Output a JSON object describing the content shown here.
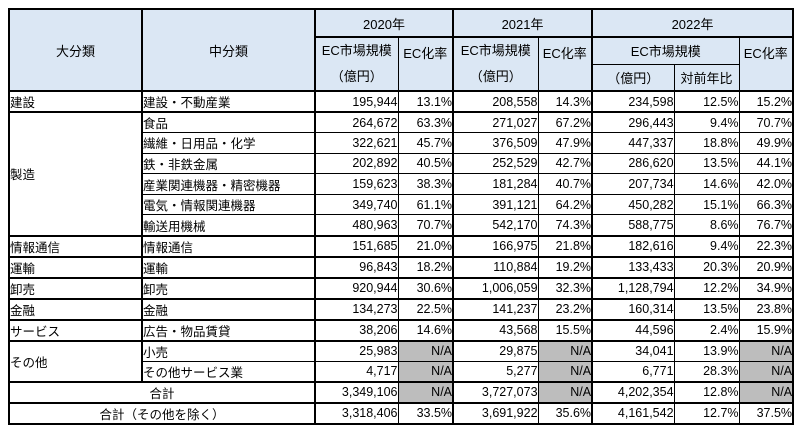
{
  "chart_data": {
    "type": "table",
    "header": {
      "major": "大分類",
      "middle": "中分類",
      "year_2020": "2020年",
      "year_2021": "2021年",
      "year_2022": "2022年",
      "market_size": "EC市場規模",
      "unit": "（億円）",
      "ec_rate": "EC化率",
      "yoy": "対前年比"
    },
    "rows": [
      {
        "major": "建設",
        "middle": "建設・不動産業",
        "m2020": "195,944",
        "r2020": "13.1%",
        "m2021": "208,558",
        "r2021": "14.3%",
        "m2022": "234,598",
        "yoy": "12.5%",
        "r2022": "15.2%"
      },
      {
        "major": "製造",
        "middle": "食品",
        "m2020": "264,672",
        "r2020": "63.3%",
        "m2021": "271,027",
        "r2021": "67.2%",
        "m2022": "296,443",
        "yoy": "9.4%",
        "r2022": "70.7%"
      },
      {
        "middle": "繊維・日用品・化学",
        "m2020": "322,621",
        "r2020": "45.7%",
        "m2021": "376,509",
        "r2021": "47.9%",
        "m2022": "447,337",
        "yoy": "18.8%",
        "r2022": "49.9%"
      },
      {
        "middle": "鉄・非鉄金属",
        "m2020": "202,892",
        "r2020": "40.5%",
        "m2021": "252,529",
        "r2021": "42.7%",
        "m2022": "286,620",
        "yoy": "13.5%",
        "r2022": "44.1%"
      },
      {
        "middle": "産業関連機器・精密機器",
        "m2020": "159,623",
        "r2020": "38.3%",
        "m2021": "181,284",
        "r2021": "40.7%",
        "m2022": "207,734",
        "yoy": "14.6%",
        "r2022": "42.0%"
      },
      {
        "middle": "電気・情報関連機器",
        "m2020": "349,740",
        "r2020": "61.1%",
        "m2021": "391,121",
        "r2021": "64.2%",
        "m2022": "450,282",
        "yoy": "15.1%",
        "r2022": "66.3%"
      },
      {
        "middle": "輸送用機械",
        "m2020": "480,963",
        "r2020": "70.7%",
        "m2021": "542,170",
        "r2021": "74.3%",
        "m2022": "588,775",
        "yoy": "8.6%",
        "r2022": "76.7%"
      },
      {
        "major": "情報通信",
        "middle": "情報通信",
        "m2020": "151,685",
        "r2020": "21.0%",
        "m2021": "166,975",
        "r2021": "21.8%",
        "m2022": "182,616",
        "yoy": "9.4%",
        "r2022": "22.3%"
      },
      {
        "major": "運輸",
        "middle": "運輸",
        "m2020": "96,843",
        "r2020": "18.2%",
        "m2021": "110,884",
        "r2021": "19.2%",
        "m2022": "133,433",
        "yoy": "20.3%",
        "r2022": "20.9%"
      },
      {
        "major": "卸売",
        "middle": "卸売",
        "m2020": "920,944",
        "r2020": "30.6%",
        "m2021": "1,006,059",
        "r2021": "32.3%",
        "m2022": "1,128,794",
        "yoy": "12.2%",
        "r2022": "34.9%"
      },
      {
        "major": "金融",
        "middle": "金融",
        "m2020": "134,273",
        "r2020": "22.5%",
        "m2021": "141,237",
        "r2021": "23.2%",
        "m2022": "160,314",
        "yoy": "13.5%",
        "r2022": "23.8%"
      },
      {
        "major": "サービス",
        "middle": "広告・物品賃貸",
        "m2020": "38,206",
        "r2020": "14.6%",
        "m2021": "43,568",
        "r2021": "15.5%",
        "m2022": "44,596",
        "yoy": "2.4%",
        "r2022": "15.9%"
      },
      {
        "major": "その他",
        "middle": "小売",
        "m2020": "25,983",
        "r2020": "N/A",
        "m2021": "29,875",
        "r2021": "N/A",
        "m2022": "34,041",
        "yoy": "13.9%",
        "r2022": "N/A"
      },
      {
        "middle": "その他サービス業",
        "m2020": "4,717",
        "r2020": "N/A",
        "m2021": "5,277",
        "r2021": "N/A",
        "m2022": "6,771",
        "yoy": "28.3%",
        "r2022": "N/A"
      }
    ],
    "totals": [
      {
        "label": "合計",
        "m2020": "3,349,106",
        "r2020": "N/A",
        "m2021": "3,727,073",
        "r2021": "N/A",
        "m2022": "4,202,354",
        "yoy": "12.8%",
        "r2022": "N/A"
      },
      {
        "label": "合計（その他を除く）",
        "m2020": "3,318,406",
        "r2020": "33.5%",
        "m2021": "3,691,922",
        "r2021": "35.6%",
        "m2022": "4,161,542",
        "yoy": "12.7%",
        "r2022": "37.5%"
      }
    ],
    "colors": {
      "header_bg": "#dbe7f4",
      "na_bg": "#bdbdbd",
      "border": "#000000"
    }
  }
}
